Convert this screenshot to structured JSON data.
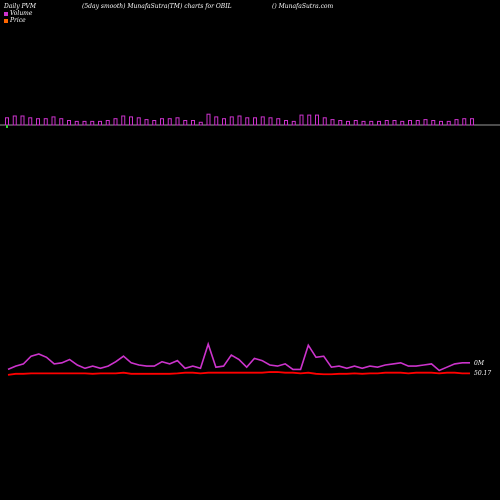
{
  "header": {
    "left": "Daily PVM",
    "middle": "(5day smooth) MunafaSutra(TM) charts for OBIL",
    "right": "() MunafaSutra.com"
  },
  "legend": {
    "volume_label": "Volume",
    "price_label": "Price",
    "volume_color": "#cc33cc",
    "price_color": "#ff6600"
  },
  "chart_data": [
    {
      "type": "bar",
      "description_label": "Volume",
      "values": [
        0.8,
        1.0,
        1.0,
        0.8,
        0.7,
        0.7,
        0.9,
        0.7,
        0.5,
        0.4,
        0.4,
        0.4,
        0.4,
        0.5,
        0.7,
        1.0,
        0.9,
        0.8,
        0.6,
        0.5,
        0.7,
        0.7,
        0.8,
        0.5,
        0.5,
        0.3,
        1.2,
        0.9,
        0.7,
        0.9,
        1.0,
        0.8,
        0.8,
        0.9,
        0.8,
        0.7,
        0.5,
        0.4,
        1.1,
        1.1,
        1.1,
        0.8,
        0.6,
        0.5,
        0.4,
        0.5,
        0.4,
        0.4,
        0.4,
        0.5,
        0.5,
        0.4,
        0.5,
        0.5,
        0.6,
        0.5,
        0.4,
        0.4,
        0.6,
        0.7,
        0.7
      ],
      "baseline_color": "#999999",
      "bar_color": "#cc33cc",
      "first_bar_color": "#33cc33"
    },
    {
      "type": "line",
      "series": [
        {
          "color": "#cc33cc",
          "values": [
            0.3,
            0.45,
            0.55,
            0.9,
            1.0,
            0.85,
            0.55,
            0.6,
            0.75,
            0.5,
            0.35,
            0.45,
            0.35,
            0.45,
            0.65,
            0.9,
            0.6,
            0.5,
            0.45,
            0.45,
            0.65,
            0.55,
            0.7,
            0.35,
            0.45,
            0.35,
            1.45,
            0.4,
            0.45,
            0.95,
            0.75,
            0.4,
            0.8,
            0.7,
            0.5,
            0.45,
            0.55,
            0.3,
            0.3,
            1.4,
            0.85,
            0.9,
            0.4,
            0.45,
            0.35,
            0.45,
            0.35,
            0.45,
            0.4,
            0.5,
            0.55,
            0.6,
            0.45,
            0.45,
            0.5,
            0.55,
            0.25,
            0.4,
            0.55,
            0.6,
            0.6
          ]
        },
        {
          "color": "#ff0000",
          "values": [
            0.05,
            0.1,
            0.1,
            0.12,
            0.12,
            0.12,
            0.12,
            0.12,
            0.12,
            0.12,
            0.12,
            0.1,
            0.12,
            0.12,
            0.12,
            0.15,
            0.1,
            0.1,
            0.1,
            0.1,
            0.1,
            0.1,
            0.12,
            0.15,
            0.15,
            0.12,
            0.15,
            0.15,
            0.15,
            0.15,
            0.15,
            0.15,
            0.15,
            0.15,
            0.18,
            0.18,
            0.15,
            0.15,
            0.12,
            0.15,
            0.1,
            0.08,
            0.08,
            0.1,
            0.1,
            0.12,
            0.1,
            0.12,
            0.12,
            0.15,
            0.15,
            0.15,
            0.12,
            0.15,
            0.15,
            0.15,
            0.12,
            0.15,
            0.15,
            0.12,
            0.12
          ]
        }
      ],
      "label_top": "0M",
      "label_price": "50.17"
    }
  ]
}
